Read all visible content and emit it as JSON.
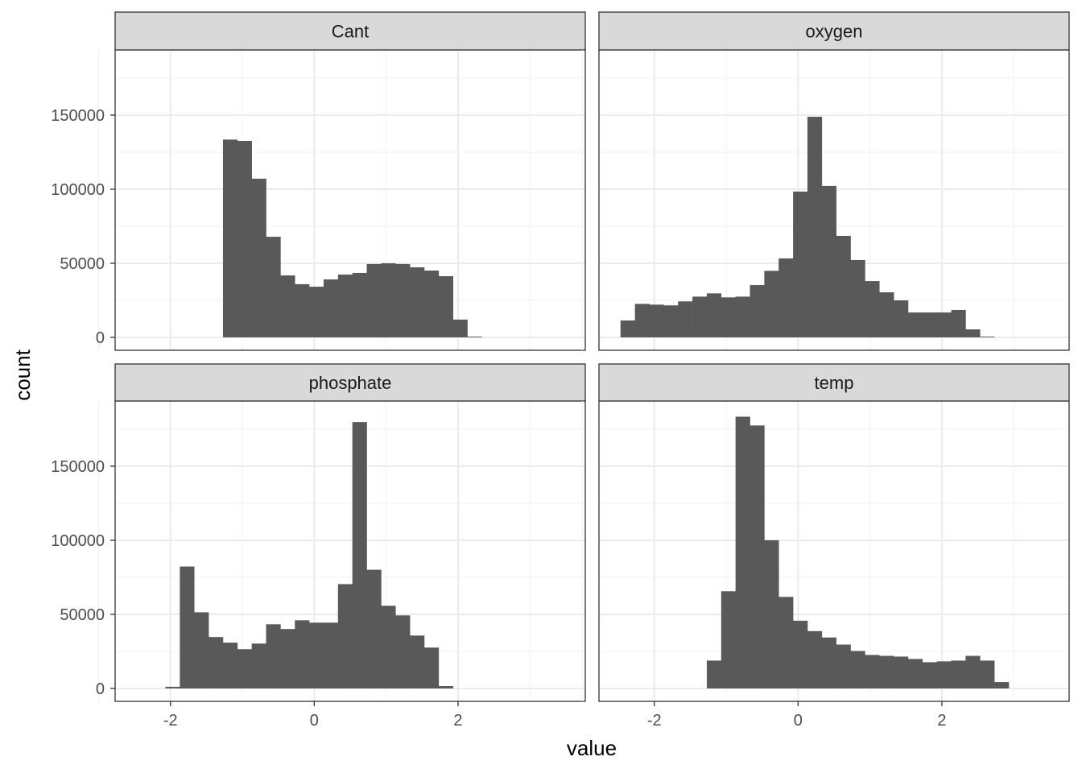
{
  "chart_data": {
    "type": "bar",
    "kind": "faceted histogram",
    "xlabel": "value",
    "ylabel": "count",
    "xlim": [
      -2.77,
      3.77
    ],
    "ylim": [
      -8700,
      194000
    ],
    "x_ticks": [
      "-2",
      "0",
      "2"
    ],
    "x_tick_values": [
      -2,
      0,
      2
    ],
    "y_ticks": [
      "0",
      "50000",
      "100000",
      "150000"
    ],
    "y_tick_values": [
      0,
      50000,
      100000,
      150000
    ],
    "grid": true,
    "bin_width": 0.2,
    "bar_color": "#595959",
    "strip_color": "#d9d9d9",
    "facets": [
      {
        "name": "Cant",
        "bin_start": -1.27,
        "values": [
          133500,
          132600,
          107100,
          67900,
          41800,
          35900,
          34200,
          39100,
          42400,
          43500,
          49500,
          50000,
          49500,
          47300,
          45100,
          41300,
          12000,
          500
        ]
      },
      {
        "name": "oxygen",
        "bin_start": -2.47,
        "values": [
          11400,
          22600,
          22100,
          21600,
          24300,
          27500,
          29700,
          27000,
          27500,
          35300,
          44900,
          53300,
          98400,
          148900,
          102200,
          68500,
          52200,
          38000,
          30400,
          25000,
          16800,
          16800,
          16800,
          18500,
          5400,
          500
        ]
      },
      {
        "name": "phosphate",
        "bin_start": -2.07,
        "values": [
          1100,
          82300,
          51400,
          34700,
          30900,
          26500,
          30300,
          43300,
          40100,
          46000,
          44400,
          44400,
          70400,
          179800,
          80100,
          55800,
          49300,
          35700,
          27600,
          1600
        ]
      },
      {
        "name": "temp",
        "bin_start": -1.27,
        "values": [
          18800,
          65600,
          183400,
          177500,
          100000,
          61800,
          45700,
          38700,
          34400,
          29600,
          25300,
          22600,
          22000,
          21500,
          19900,
          17700,
          18300,
          18800,
          22000,
          18800,
          4300
        ]
      }
    ]
  }
}
